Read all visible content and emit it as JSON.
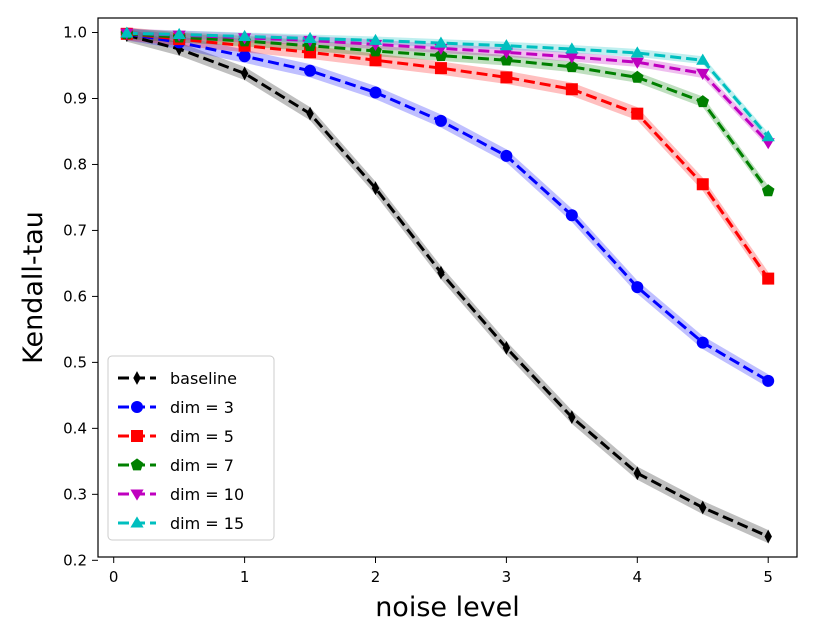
{
  "chart_data": {
    "type": "line",
    "title": "",
    "xlabel": "noise level",
    "ylabel": "Kendall-tau",
    "xlim": [
      -0.12,
      5.22
    ],
    "ylim": [
      0.205,
      1.022
    ],
    "xticks": [
      0,
      1,
      2,
      3,
      4,
      5
    ],
    "xtick_labels": [
      "0",
      "1",
      "2",
      "3",
      "4",
      "5"
    ],
    "yticks": [
      0.2,
      0.3,
      0.4,
      0.5,
      0.6,
      0.7,
      0.8,
      0.9,
      1.0
    ],
    "ytick_labels": [
      "0.2",
      "0.3",
      "0.4",
      "0.5",
      "0.6",
      "0.7",
      "0.8",
      "0.9",
      "1.0"
    ],
    "grid": false,
    "legend_position": "lower-left",
    "x": [
      0.1,
      0.5,
      1.0,
      1.5,
      2.0,
      2.5,
      3.0,
      3.5,
      4.0,
      4.5,
      5.0
    ],
    "series": [
      {
        "name": "baseline",
        "color": "#000000",
        "marker": "thin_diamond",
        "band": 0.01,
        "values": [
          0.996,
          0.975,
          0.938,
          0.877,
          0.764,
          0.636,
          0.522,
          0.417,
          0.332,
          0.28,
          0.236
        ]
      },
      {
        "name": "dim = 3",
        "color": "#0000ff",
        "marker": "circle",
        "band": 0.01,
        "values": [
          0.998,
          0.985,
          0.964,
          0.942,
          0.909,
          0.866,
          0.813,
          0.723,
          0.614,
          0.53,
          0.472
        ]
      },
      {
        "name": "dim = 5",
        "color": "#ff0000",
        "marker": "square",
        "band": 0.01,
        "values": [
          0.998,
          0.99,
          0.98,
          0.97,
          0.958,
          0.946,
          0.932,
          0.914,
          0.877,
          0.77,
          0.627
        ]
      },
      {
        "name": "dim = 7",
        "color": "#008000",
        "marker": "pentagon",
        "band": 0.008,
        "values": [
          0.998,
          0.993,
          0.987,
          0.98,
          0.972,
          0.965,
          0.958,
          0.948,
          0.932,
          0.895,
          0.76
        ]
      },
      {
        "name": "dim = 10",
        "color": "#bf00bf",
        "marker": "triangle_down",
        "band": 0.007,
        "values": [
          0.999,
          0.996,
          0.992,
          0.988,
          0.982,
          0.976,
          0.97,
          0.963,
          0.955,
          0.938,
          0.833
        ]
      },
      {
        "name": "dim = 15",
        "color": "#00bfbf",
        "marker": "triangle_up",
        "band": 0.006,
        "values": [
          0.999,
          0.997,
          0.994,
          0.991,
          0.988,
          0.984,
          0.98,
          0.975,
          0.969,
          0.958,
          0.842
        ]
      }
    ]
  }
}
